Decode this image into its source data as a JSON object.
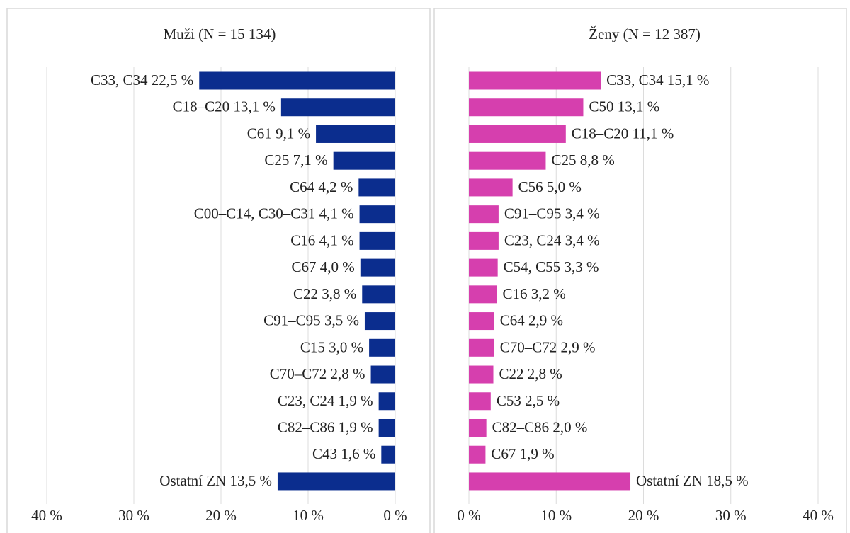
{
  "chart_data": [
    {
      "type": "bar",
      "orientation": "horizontal",
      "title": "Muži (N = 15 134)",
      "color": "#0b2d8e",
      "categories": [
        "C33, C34",
        "C18–C20",
        "C61",
        "C25",
        "C64",
        "C00–C14, C30–C31",
        "C16",
        "C67",
        "C22",
        "C91–C95",
        "C15",
        "C70–C72",
        "C23, C24",
        "C82–C86",
        "C43",
        "Ostatní ZN"
      ],
      "values": [
        22.5,
        13.1,
        9.1,
        7.1,
        4.2,
        4.1,
        4.1,
        4.0,
        3.8,
        3.5,
        3.0,
        2.8,
        1.9,
        1.9,
        1.6,
        13.5
      ],
      "value_labels": [
        "22,5 %",
        "13,1 %",
        "9,1 %",
        "7,1 %",
        "4,2 %",
        "4,1 %",
        "4,1 %",
        "4,0 %",
        "3,8 %",
        "3,5 %",
        "3,0 %",
        "2,8 %",
        "1,9 %",
        "1,9 %",
        "1,6 %",
        "13,5 %"
      ],
      "xlim": [
        40,
        0
      ],
      "xticks": [
        {
          "value": 40,
          "label": "40 %"
        },
        {
          "value": 30,
          "label": "30 %"
        },
        {
          "value": 20,
          "label": "20 %"
        },
        {
          "value": 10,
          "label": "10 %"
        },
        {
          "value": 0,
          "label": "0 %"
        }
      ],
      "grid": true
    },
    {
      "type": "bar",
      "orientation": "horizontal",
      "title": "Ženy (N = 12 387)",
      "color": "#d63fae",
      "categories": [
        "C33, C34",
        "C50",
        "C18–C20",
        "C25",
        "C56",
        "C91–C95",
        "C23, C24",
        "C54, C55",
        "C16",
        "C64",
        "C70–C72",
        "C22",
        "C53",
        "C82–C86",
        "C67",
        "Ostatní ZN"
      ],
      "values": [
        15.1,
        13.1,
        11.1,
        8.8,
        5.0,
        3.4,
        3.4,
        3.3,
        3.2,
        2.9,
        2.9,
        2.8,
        2.5,
        2.0,
        1.9,
        18.5
      ],
      "value_labels": [
        "15,1 %",
        "13,1 %",
        "11,1 %",
        "8,8 %",
        "5,0 %",
        "3,4 %",
        "3,4 %",
        "3,3 %",
        "3,2 %",
        "2,9 %",
        "2,9 %",
        "2,8 %",
        "2,5 %",
        "2,0 %",
        "1,9 %",
        "18,5 %"
      ],
      "xlim": [
        0,
        40
      ],
      "xticks": [
        {
          "value": 0,
          "label": "0 %"
        },
        {
          "value": 10,
          "label": "10 %"
        },
        {
          "value": 20,
          "label": "20 %"
        },
        {
          "value": 30,
          "label": "30 %"
        },
        {
          "value": 40,
          "label": "40 %"
        }
      ],
      "grid": true
    }
  ]
}
